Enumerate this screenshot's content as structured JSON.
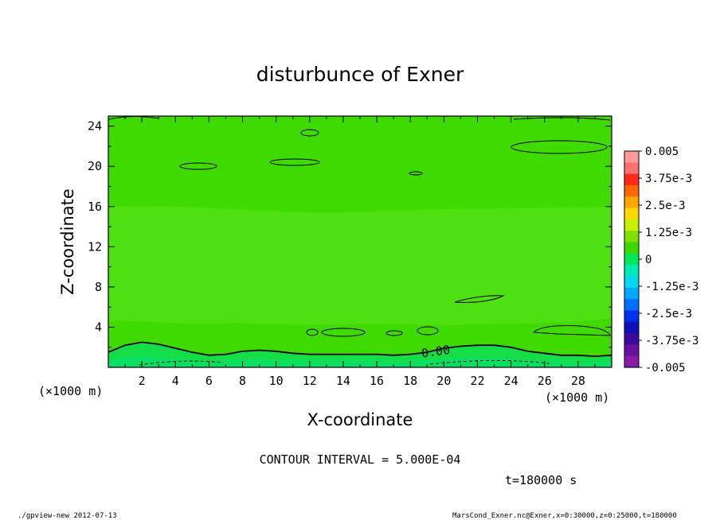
{
  "chart_data": {
    "type": "heatmap",
    "title": "disturbunce of Exner",
    "xlabel": "X-coordinate",
    "ylabel": "Z-coordinate",
    "x_unit_label": "(×1000 m)",
    "z_unit_label": "(×1000 m)",
    "xlim": [
      0,
      30
    ],
    "ylim": [
      0,
      25
    ],
    "x_ticks": [
      "2",
      "4",
      "6",
      "8",
      "10",
      "12",
      "14",
      "16",
      "18",
      "20",
      "22",
      "24",
      "26",
      "28"
    ],
    "y_ticks": [
      "4",
      "8",
      "12",
      "16",
      "20",
      "24"
    ],
    "x_tick_values": [
      2,
      4,
      6,
      8,
      10,
      12,
      14,
      16,
      18,
      20,
      22,
      24,
      26,
      28
    ],
    "y_tick_values": [
      4,
      8,
      12,
      16,
      20,
      24
    ],
    "colorbar": {
      "labels": [
        "0.005",
        "3.75e-3",
        "2.5e-3",
        "1.25e-3",
        "0",
        "-1.25e-3",
        "-2.5e-3",
        "-3.75e-3",
        "-0.005"
      ],
      "colors_top_to_bottom": [
        "#ff9a9a",
        "#ff7070",
        "#ff2a1a",
        "#ff6a00",
        "#ffa500",
        "#ffd800",
        "#c8f000",
        "#7ee000",
        "#3ed800",
        "#00e85a",
        "#00eab8",
        "#00d8f0",
        "#00a8ff",
        "#0070ff",
        "#0030f0",
        "#1010b8",
        "#3a0a9a",
        "#6a10a0",
        "#8a1aa8"
      ]
    },
    "zero_contour_label": "0.00",
    "contour_interval_text": "CONTOUR INTERVAL = 5.000E-04",
    "time_text": "t=180000 s",
    "zero_contour_z": [
      [
        0,
        1.5
      ],
      [
        1,
        2.2
      ],
      [
        2,
        2.5
      ],
      [
        3,
        2.3
      ],
      [
        4,
        1.9
      ],
      [
        5,
        1.5
      ],
      [
        6,
        1.2
      ],
      [
        7,
        1.3
      ],
      [
        8,
        1.6
      ],
      [
        9,
        1.7
      ],
      [
        10,
        1.6
      ],
      [
        11,
        1.4
      ],
      [
        12,
        1.3
      ],
      [
        14,
        1.3
      ],
      [
        16,
        1.3
      ],
      [
        17,
        1.2
      ],
      [
        18,
        1.3
      ],
      [
        19,
        1.5
      ],
      [
        20,
        1.9
      ],
      [
        21,
        2.1
      ],
      [
        22,
        2.2
      ],
      [
        23,
        2.2
      ],
      [
        24,
        2.0
      ],
      [
        25,
        1.6
      ],
      [
        26,
        1.4
      ],
      [
        27,
        1.2
      ],
      [
        28,
        1.2
      ],
      [
        29,
        1.1
      ],
      [
        30,
        1.2
      ]
    ]
  },
  "footer": {
    "left": "./gpview-new   2012-07-13",
    "right": "MarsCond_Exner.nc@Exner,x=0:30000,z=0:25000,t=180000"
  }
}
